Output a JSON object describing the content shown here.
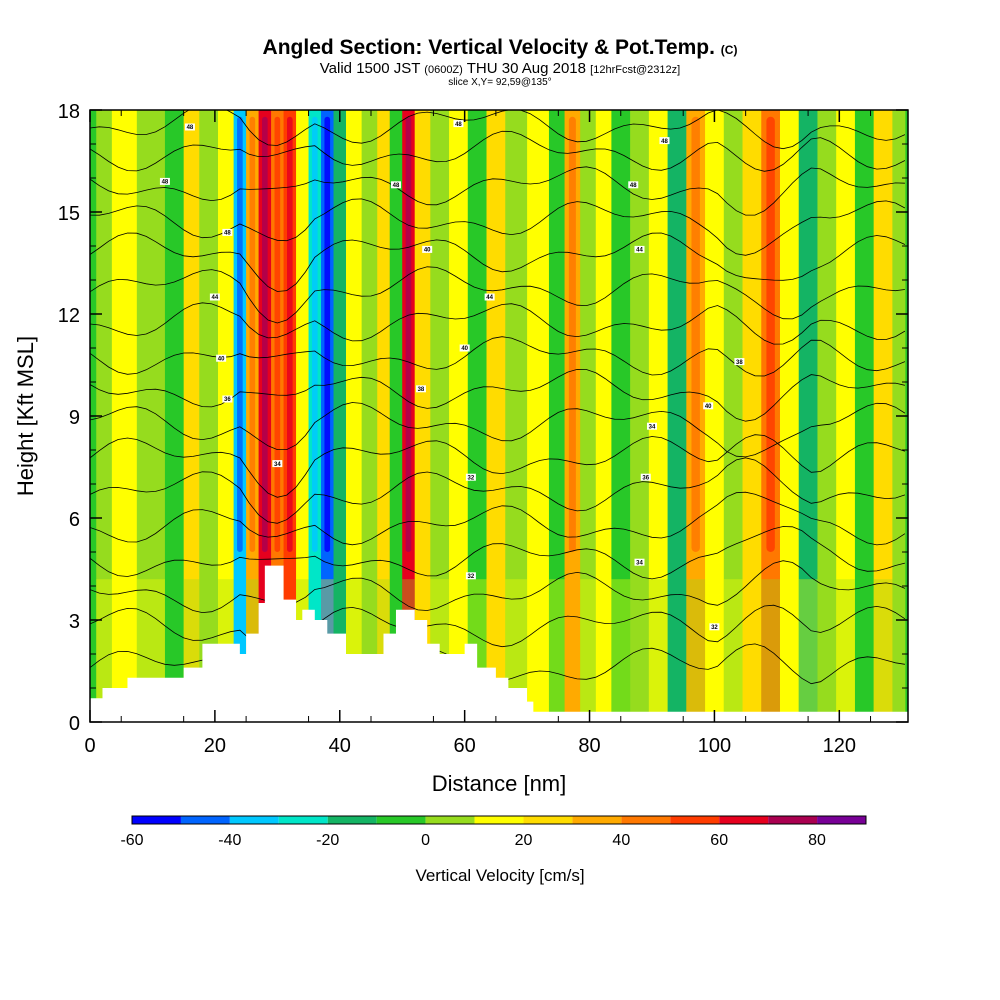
{
  "header": {
    "title_main": "Angled Section: Vertical Velocity & Pot.Temp.",
    "title_tag": "(C)",
    "valid_a": "Valid 1500 JST",
    "valid_b": "(0600Z)",
    "valid_c": "THU 30 Aug 2018",
    "valid_d": "[12hrFcst@2312z]",
    "slice": "slice X,Y= 92,59@135°"
  },
  "chart_data": {
    "type": "heatmap",
    "xlabel": "Distance [nm]",
    "ylabel": "Height [Kft MSL]",
    "xlim": [
      0,
      131
    ],
    "ylim": [
      0,
      18
    ],
    "x_ticks": [
      0,
      20,
      40,
      60,
      80,
      100,
      120
    ],
    "y_ticks": [
      0,
      3,
      6,
      9,
      12,
      15,
      18
    ],
    "colorbar": {
      "title": "Vertical Velocity [cm/s]",
      "levels": [
        -60,
        -50,
        -40,
        -30,
        -20,
        -10,
        0,
        10,
        20,
        30,
        40,
        50,
        60,
        70,
        80,
        90
      ],
      "tick_values": [
        -60,
        -40,
        -20,
        0,
        20,
        40,
        60,
        80
      ],
      "colors": [
        "#0000ff",
        "#0064ff",
        "#00c8ff",
        "#00e6c8",
        "#14b464",
        "#28c828",
        "#96dc1e",
        "#ffff00",
        "#ffdc00",
        "#ffaa00",
        "#ff7800",
        "#ff3c00",
        "#e6001e",
        "#aa0050",
        "#780096"
      ]
    },
    "columns": [
      {
        "x": 2,
        "level": 0
      },
      {
        "x": 5,
        "level": 1
      },
      {
        "x": 10,
        "level": 0
      },
      {
        "x": 14,
        "level": -1
      },
      {
        "x": 16,
        "level": 2
      },
      {
        "x": 19,
        "level": 0
      },
      {
        "x": 22,
        "level": 1
      },
      {
        "x": 24,
        "level": -4
      },
      {
        "x": 26,
        "level": 3
      },
      {
        "x": 28,
        "level": 6
      },
      {
        "x": 30,
        "level": 4
      },
      {
        "x": 32,
        "level": 5
      },
      {
        "x": 34,
        "level": 1
      },
      {
        "x": 36,
        "level": -3
      },
      {
        "x": 38,
        "level": -5
      },
      {
        "x": 40,
        "level": -2
      },
      {
        "x": 42,
        "level": 1
      },
      {
        "x": 45,
        "level": 0
      },
      {
        "x": 47,
        "level": 2
      },
      {
        "x": 49,
        "level": -1
      },
      {
        "x": 51,
        "level": 6
      },
      {
        "x": 53,
        "level": 2
      },
      {
        "x": 56,
        "level": 0
      },
      {
        "x": 59,
        "level": 1
      },
      {
        "x": 62,
        "level": -1
      },
      {
        "x": 65,
        "level": 2
      },
      {
        "x": 68,
        "level": 0
      },
      {
        "x": 72,
        "level": 1
      },
      {
        "x": 75,
        "level": -1
      },
      {
        "x": 77,
        "level": 3
      },
      {
        "x": 80,
        "level": 0
      },
      {
        "x": 82,
        "level": 1
      },
      {
        "x": 85,
        "level": -1
      },
      {
        "x": 88,
        "level": 0
      },
      {
        "x": 91,
        "level": 1
      },
      {
        "x": 94,
        "level": -2
      },
      {
        "x": 97,
        "level": 3
      },
      {
        "x": 100,
        "level": 1
      },
      {
        "x": 103,
        "level": 0
      },
      {
        "x": 106,
        "level": 2
      },
      {
        "x": 109,
        "level": 4
      },
      {
        "x": 112,
        "level": 1
      },
      {
        "x": 115,
        "level": -2
      },
      {
        "x": 118,
        "level": 0
      },
      {
        "x": 121,
        "level": 1
      },
      {
        "x": 124,
        "level": -1
      },
      {
        "x": 127,
        "level": 2
      },
      {
        "x": 130,
        "level": 0
      }
    ],
    "terrain_kft": [
      [
        0,
        0.7
      ],
      [
        2,
        1.0
      ],
      [
        6,
        1.3
      ],
      [
        10,
        1.3
      ],
      [
        13,
        1.3
      ],
      [
        15,
        1.6
      ],
      [
        18,
        2.3
      ],
      [
        22,
        2.3
      ],
      [
        24,
        2.0
      ],
      [
        25,
        2.6
      ],
      [
        26,
        2.6
      ],
      [
        27,
        3.5
      ],
      [
        28,
        4.6
      ],
      [
        30,
        4.6
      ],
      [
        31,
        3.6
      ],
      [
        33,
        3.0
      ],
      [
        34,
        3.3
      ],
      [
        36,
        3.0
      ],
      [
        38,
        2.6
      ],
      [
        41,
        2.0
      ],
      [
        45,
        2.0
      ],
      [
        47,
        2.6
      ],
      [
        49,
        3.3
      ],
      [
        52,
        3.0
      ],
      [
        54,
        2.3
      ],
      [
        56,
        2.0
      ],
      [
        58,
        2.0
      ],
      [
        60,
        2.3
      ],
      [
        62,
        1.6
      ],
      [
        65,
        1.3
      ],
      [
        67,
        1.0
      ],
      [
        70,
        0.6
      ],
      [
        71,
        0.3
      ],
      [
        131,
        0.3
      ]
    ],
    "isotherms": {
      "levels_kft": [
        1.6,
        2.8,
        3.8,
        4.8,
        5.8,
        6.8,
        7.8,
        8.8,
        9.8,
        10.8,
        11.8,
        12.8,
        13.8,
        14.8,
        15.8,
        16.8,
        17.6
      ],
      "labels": [
        {
          "text": "36",
          "x": 22,
          "y_kft": 9.5
        },
        {
          "text": "40",
          "x": 21,
          "y_kft": 10.7
        },
        {
          "text": "44",
          "x": 20,
          "y_kft": 12.5
        },
        {
          "text": "48",
          "x": 22,
          "y_kft": 14.4
        },
        {
          "text": "48",
          "x": 12,
          "y_kft": 15.9
        },
        {
          "text": "48",
          "x": 16,
          "y_kft": 17.5
        },
        {
          "text": "34",
          "x": 30,
          "y_kft": 7.6
        },
        {
          "text": "38",
          "x": 53,
          "y_kft": 9.8
        },
        {
          "text": "40",
          "x": 60,
          "y_kft": 11.0
        },
        {
          "text": "40",
          "x": 54,
          "y_kft": 13.9
        },
        {
          "text": "48",
          "x": 49,
          "y_kft": 15.8
        },
        {
          "text": "48",
          "x": 59,
          "y_kft": 17.6
        },
        {
          "text": "44",
          "x": 64,
          "y_kft": 12.5
        },
        {
          "text": "32",
          "x": 61,
          "y_kft": 7.2
        },
        {
          "text": "32",
          "x": 61,
          "y_kft": 4.3
        },
        {
          "text": "34",
          "x": 90,
          "y_kft": 8.7
        },
        {
          "text": "36",
          "x": 89,
          "y_kft": 7.2
        },
        {
          "text": "40",
          "x": 99,
          "y_kft": 9.3
        },
        {
          "text": "44",
          "x": 88,
          "y_kft": 13.9
        },
        {
          "text": "48",
          "x": 87,
          "y_kft": 15.8
        },
        {
          "text": "48",
          "x": 92,
          "y_kft": 17.1
        },
        {
          "text": "34",
          "x": 88,
          "y_kft": 4.7
        },
        {
          "text": "38",
          "x": 104,
          "y_kft": 10.6
        },
        {
          "text": "32",
          "x": 100,
          "y_kft": 2.8
        }
      ]
    }
  }
}
